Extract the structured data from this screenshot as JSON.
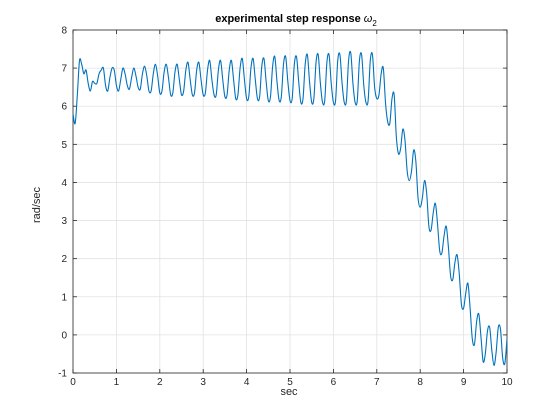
{
  "chart_data": {
    "type": "line",
    "title_main": "experimental step response ",
    "title_symbol": "ω",
    "title_subscript": "2",
    "xlabel": "sec",
    "ylabel": "rad/sec",
    "xlim": [
      0,
      10
    ],
    "ylim": [
      -1,
      8
    ],
    "xticks": [
      0,
      1,
      2,
      3,
      4,
      5,
      6,
      7,
      8,
      9,
      10
    ],
    "yticks": [
      -1,
      0,
      1,
      2,
      3,
      4,
      5,
      6,
      7,
      8
    ],
    "grid": true,
    "line_color": "#0072BD",
    "series": [
      {
        "x": [
          0.0,
          0.05,
          0.1,
          0.15,
          0.2,
          0.25,
          0.3,
          0.35,
          0.4,
          0.45,
          0.5,
          0.55,
          0.6,
          0.65,
          0.7,
          0.75,
          0.8,
          0.85,
          0.9,
          0.95,
          1.0,
          1.05,
          1.1,
          1.15,
          1.2,
          1.25,
          1.3,
          1.35,
          1.4,
          1.45,
          1.5,
          1.55,
          1.6,
          1.65,
          1.7,
          1.75,
          1.8,
          1.85,
          1.9,
          1.95,
          2.0,
          2.05,
          2.1,
          2.15,
          2.2,
          2.25,
          2.3,
          2.35,
          2.4,
          2.45,
          2.5,
          2.55,
          2.6,
          2.65,
          2.7,
          2.75,
          2.8,
          2.85,
          2.9,
          2.95,
          3.0,
          3.05,
          3.1,
          3.15,
          3.2,
          3.25,
          3.3,
          3.35,
          3.4,
          3.45,
          3.5,
          3.55,
          3.6,
          3.65,
          3.7,
          3.75,
          3.8,
          3.85,
          3.9,
          3.95,
          4.0,
          4.05,
          4.1,
          4.15,
          4.2,
          4.25,
          4.3,
          4.35,
          4.4,
          4.45,
          4.5,
          4.55,
          4.6,
          4.65,
          4.7,
          4.75,
          4.8,
          4.85,
          4.9,
          4.95,
          5.0,
          5.05,
          5.1,
          5.15,
          5.2,
          5.25,
          5.3,
          5.35,
          5.4,
          5.45,
          5.5,
          5.55,
          5.6,
          5.65,
          5.7,
          5.75,
          5.8,
          5.85,
          5.9,
          5.95,
          6.0,
          6.05,
          6.1,
          6.15,
          6.2,
          6.25,
          6.3,
          6.35,
          6.4,
          6.45,
          6.5,
          6.55,
          6.6,
          6.65,
          6.7,
          6.75,
          6.8,
          6.85,
          6.9,
          6.95,
          7.0,
          7.05,
          7.1,
          7.15,
          7.2,
          7.25,
          7.3,
          7.35,
          7.4,
          7.45,
          7.5,
          7.55,
          7.6,
          7.65,
          7.7,
          7.75,
          7.8,
          7.85,
          7.9,
          7.95,
          8.0,
          8.05,
          8.1,
          8.15,
          8.2,
          8.25,
          8.3,
          8.35,
          8.4,
          8.45,
          8.5,
          8.55,
          8.6,
          8.65,
          8.7,
          8.75,
          8.8,
          8.85,
          8.9,
          8.95,
          9.0,
          9.05,
          9.1,
          9.15,
          9.2,
          9.25,
          9.3,
          9.35,
          9.4,
          9.45,
          9.5,
          9.55,
          9.6,
          9.65,
          9.7,
          9.75,
          9.8,
          9.85,
          9.9,
          9.95,
          10.0
        ],
        "y": [
          5.8,
          5.55,
          6.3,
          7.2,
          7.1,
          6.85,
          6.95,
          6.6,
          6.4,
          6.65,
          6.6,
          6.6,
          6.85,
          6.95,
          7.0,
          6.55,
          6.4,
          6.75,
          7.0,
          6.95,
          6.55,
          6.4,
          6.7,
          7.0,
          6.85,
          6.55,
          6.45,
          6.75,
          7.0,
          6.8,
          6.5,
          6.45,
          6.85,
          7.05,
          6.8,
          6.4,
          6.4,
          6.85,
          7.1,
          6.8,
          6.35,
          6.4,
          6.9,
          7.1,
          6.75,
          6.3,
          6.35,
          6.9,
          7.1,
          6.7,
          6.3,
          6.4,
          6.95,
          7.15,
          6.7,
          6.3,
          6.35,
          6.95,
          7.15,
          6.7,
          6.3,
          6.35,
          6.95,
          7.2,
          6.7,
          6.3,
          6.3,
          6.95,
          7.2,
          6.7,
          6.25,
          6.3,
          6.95,
          7.2,
          6.7,
          6.2,
          6.3,
          7.0,
          7.25,
          6.7,
          6.2,
          6.25,
          7.0,
          7.25,
          6.7,
          6.2,
          6.25,
          7.05,
          7.25,
          6.65,
          6.15,
          6.25,
          7.05,
          7.3,
          6.65,
          6.15,
          6.25,
          7.1,
          7.3,
          6.65,
          6.15,
          6.2,
          7.1,
          7.3,
          6.65,
          6.1,
          6.2,
          7.1,
          7.35,
          6.65,
          6.1,
          6.2,
          7.15,
          7.35,
          6.6,
          6.1,
          6.15,
          7.15,
          7.35,
          6.6,
          6.1,
          6.15,
          7.2,
          7.35,
          6.6,
          6.1,
          6.15,
          7.2,
          7.4,
          6.6,
          6.1,
          6.15,
          7.2,
          7.35,
          6.55,
          6.1,
          6.15,
          7.2,
          7.35,
          6.5,
          6.2,
          6.3,
          6.85,
          7.0,
          6.1,
          5.6,
          5.55,
          6.2,
          6.3,
          5.2,
          4.75,
          4.9,
          5.4,
          5.1,
          4.3,
          4.05,
          4.3,
          4.85,
          4.55,
          3.6,
          3.35,
          3.6,
          4.05,
          3.7,
          2.85,
          2.75,
          3.2,
          3.45,
          2.9,
          2.2,
          2.15,
          2.6,
          2.85,
          2.3,
          1.55,
          1.45,
          1.9,
          2.1,
          1.6,
          0.8,
          0.7,
          1.1,
          1.35,
          0.7,
          -0.1,
          -0.25,
          0.35,
          0.55,
          -0.05,
          -0.7,
          -0.5,
          0.1,
          0.2,
          -0.4,
          -0.8,
          -0.45,
          0.2,
          0.15,
          -0.6,
          -0.75,
          -0.1
        ]
      }
    ]
  }
}
